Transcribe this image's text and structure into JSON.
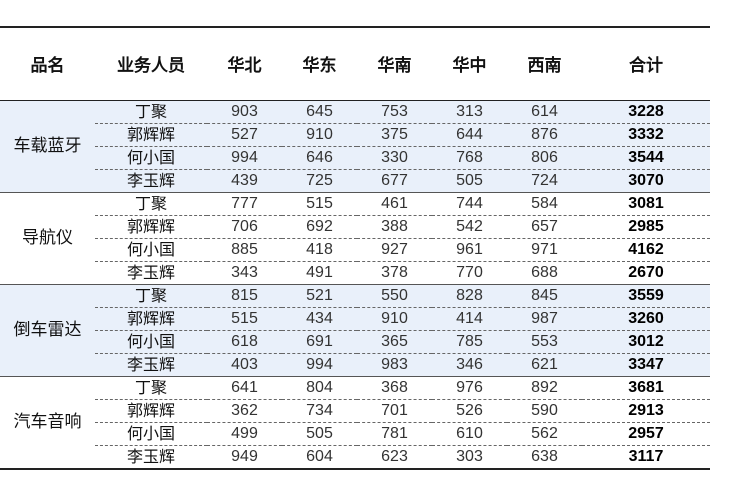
{
  "headers": [
    "品名",
    "业务人员",
    "华北",
    "华东",
    "华南",
    "华中",
    "西南",
    "合计"
  ],
  "groups": [
    {
      "product": "车载蓝牙",
      "rows": [
        {
          "person": "丁聚",
          "values": [
            903,
            645,
            753,
            313,
            614
          ],
          "total": 3228
        },
        {
          "person": "郭辉辉",
          "values": [
            527,
            910,
            375,
            644,
            876
          ],
          "total": 3332
        },
        {
          "person": "何小国",
          "values": [
            994,
            646,
            330,
            768,
            806
          ],
          "total": 3544
        },
        {
          "person": "李玉辉",
          "values": [
            439,
            725,
            677,
            505,
            724
          ],
          "total": 3070
        }
      ]
    },
    {
      "product": "导航仪",
      "rows": [
        {
          "person": "丁聚",
          "values": [
            777,
            515,
            461,
            744,
            584
          ],
          "total": 3081
        },
        {
          "person": "郭辉辉",
          "values": [
            706,
            692,
            388,
            542,
            657
          ],
          "total": 2985
        },
        {
          "person": "何小国",
          "values": [
            885,
            418,
            927,
            961,
            971
          ],
          "total": 4162
        },
        {
          "person": "李玉辉",
          "values": [
            343,
            491,
            378,
            770,
            688
          ],
          "total": 2670
        }
      ]
    },
    {
      "product": "倒车雷达",
      "rows": [
        {
          "person": "丁聚",
          "values": [
            815,
            521,
            550,
            828,
            845
          ],
          "total": 3559
        },
        {
          "person": "郭辉辉",
          "values": [
            515,
            434,
            910,
            414,
            987
          ],
          "total": 3260
        },
        {
          "person": "何小国",
          "values": [
            618,
            691,
            365,
            785,
            553
          ],
          "total": 3012
        },
        {
          "person": "李玉辉",
          "values": [
            403,
            994,
            983,
            346,
            621
          ],
          "total": 3347
        }
      ]
    },
    {
      "product": "汽车音响",
      "rows": [
        {
          "person": "丁聚",
          "values": [
            641,
            804,
            368,
            976,
            892
          ],
          "total": 3681
        },
        {
          "person": "郭辉辉",
          "values": [
            362,
            734,
            701,
            526,
            590
          ],
          "total": 2913
        },
        {
          "person": "何小国",
          "values": [
            499,
            505,
            781,
            610,
            562
          ],
          "total": 2957
        },
        {
          "person": "李玉辉",
          "values": [
            949,
            604,
            623,
            303,
            638
          ],
          "total": 3117
        }
      ]
    }
  ],
  "colors": {
    "shaded_group": "#e9f0fa",
    "rule": "#222222"
  }
}
